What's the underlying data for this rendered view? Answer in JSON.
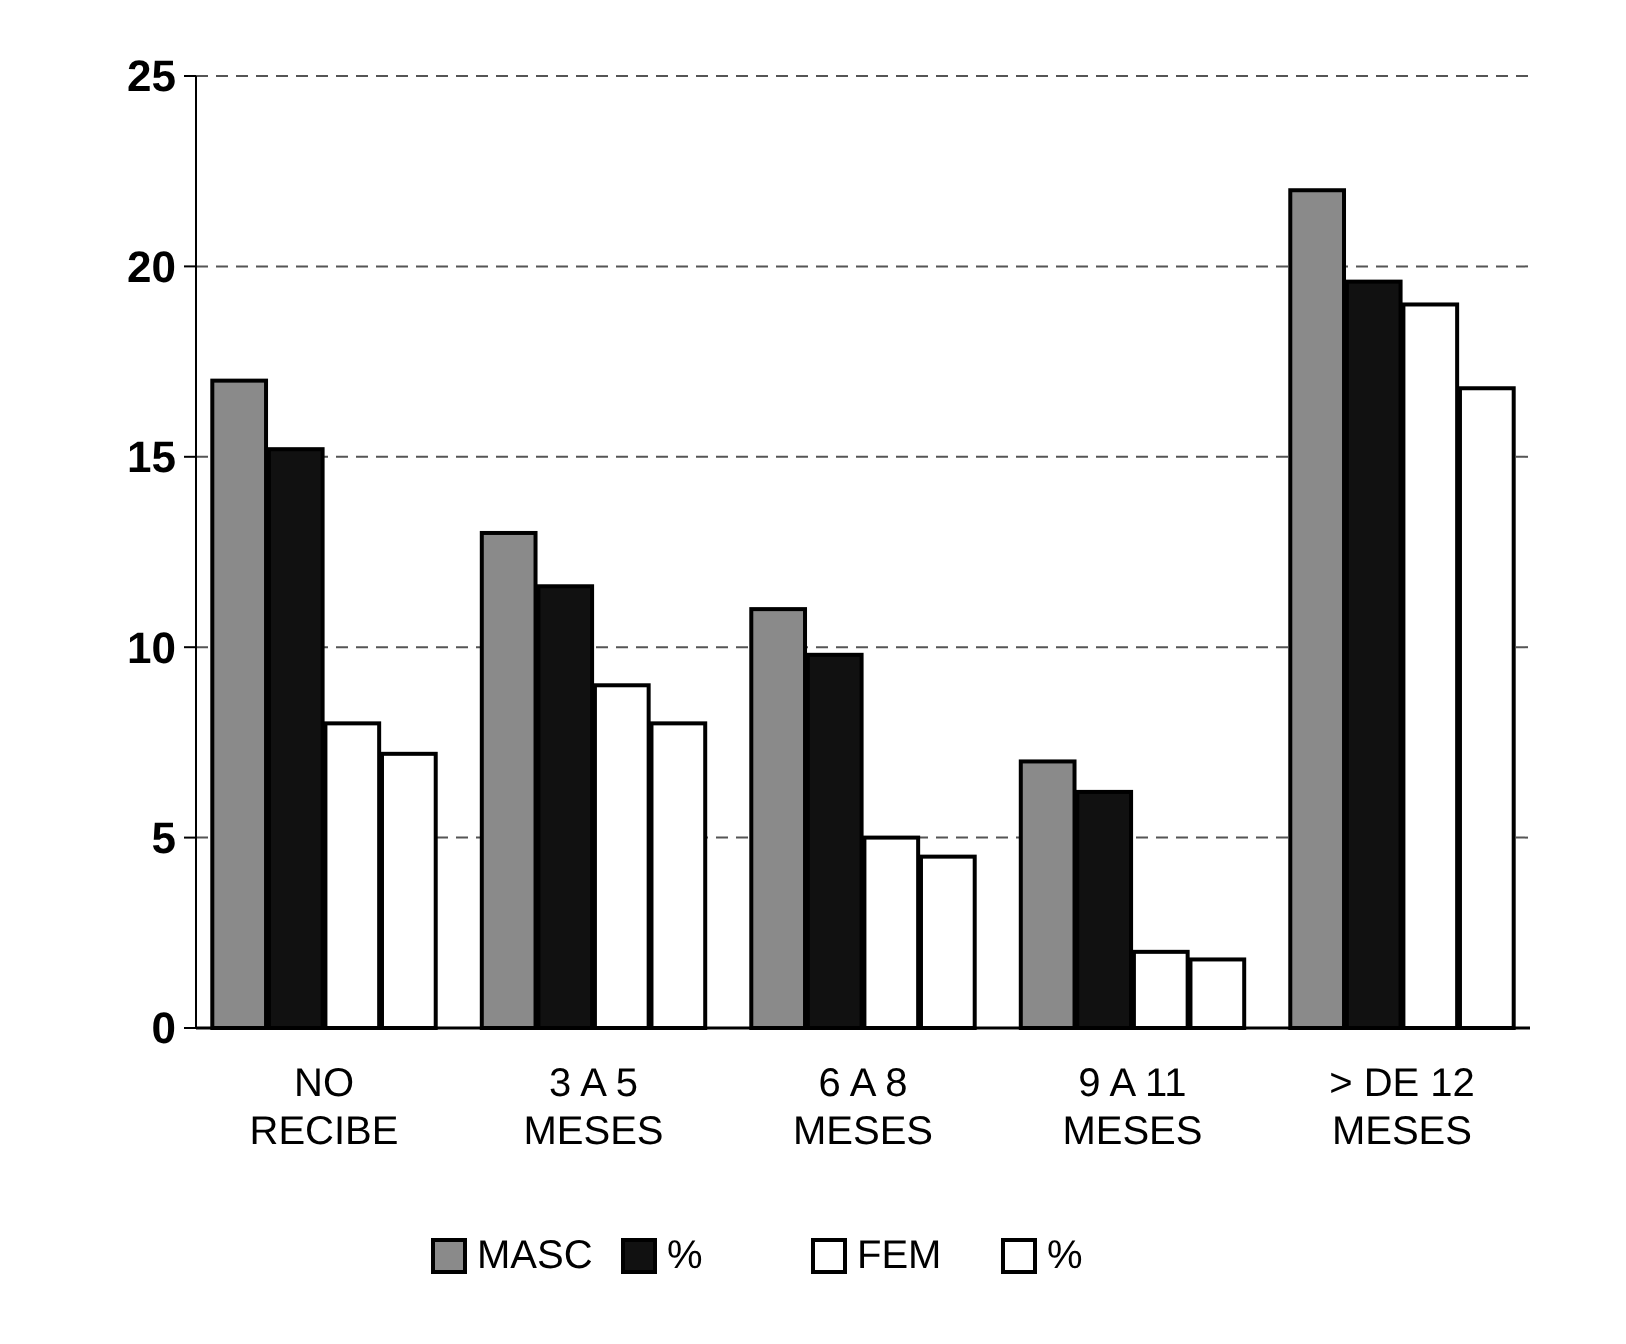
{
  "chart_data": {
    "type": "bar",
    "categories": [
      "NO\nRECIBE",
      "3 A 5\nMESES",
      "6 A 8\nMESES",
      "9 A 11\nMESES",
      "> DE 12\nMESES"
    ],
    "series": [
      {
        "name": "MASC",
        "color": "#8a8a8a",
        "values": [
          17,
          13,
          11,
          7,
          22
        ]
      },
      {
        "name": "%",
        "color": "#111111",
        "values": [
          15.2,
          11.6,
          9.8,
          6.2,
          19.6
        ]
      },
      {
        "name": "FEM",
        "color": "#ffffff",
        "values": [
          8,
          9,
          5,
          2,
          19
        ]
      },
      {
        "name": "%",
        "color": "#ffffff",
        "values": [
          7.2,
          8,
          4.5,
          1.8,
          16.8
        ]
      }
    ],
    "ylim": [
      0,
      25
    ],
    "yticks": [
      0,
      5,
      10,
      15,
      20,
      25
    ],
    "grid": "y",
    "legend": "bottom"
  }
}
